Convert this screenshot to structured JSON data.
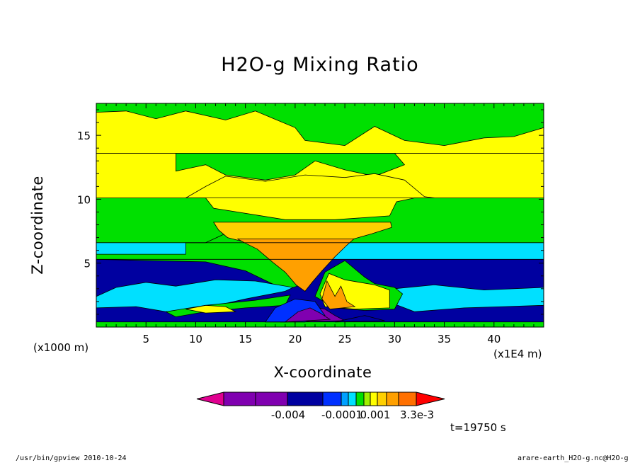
{
  "chart_data": {
    "type": "heatmap",
    "title": "H2O-g Mixing Ratio",
    "xlabel": "X-coordinate",
    "ylabel": "Z-coordinate",
    "x_unit_left": "(x1000 m)",
    "x_unit_right": "(x1E4 m)",
    "xlim": [
      0,
      45
    ],
    "ylim": [
      0,
      17.5
    ],
    "x_ticks": [
      5,
      10,
      15,
      20,
      25,
      30,
      35,
      40
    ],
    "x_tick_labels": [
      "5",
      "10",
      "15",
      "20",
      "25",
      "30",
      "35",
      "40"
    ],
    "y_ticks": [
      5,
      10,
      15
    ],
    "y_tick_labels": [
      "5",
      "10",
      "15"
    ],
    "colorbar": {
      "colors": [
        "#e00090",
        "#8000b0",
        "#8000b0",
        "#0000a0",
        "#0000a0",
        "#0030ff",
        "#00a0ff",
        "#00e0ff",
        "#00e000",
        "#a0f000",
        "#ffff00",
        "#ffd000",
        "#ffa000",
        "#ff7000",
        "#ff0000"
      ],
      "labels": [
        "-0.004",
        "-0.0001",
        "0.001",
        "3.3e-3"
      ]
    },
    "layers": [
      {
        "name": "surface",
        "color": "#00e000",
        "y": [
          0,
          0.4
        ]
      },
      {
        "name": "dark-blue",
        "color": "#0000a0",
        "y": [
          0.4,
          5.3
        ]
      },
      {
        "name": "cyan",
        "color": "#00e0ff",
        "y": [
          5.3,
          6.6
        ]
      },
      {
        "name": "green-mid",
        "color": "#00e000",
        "y": [
          6.6,
          10.1
        ]
      },
      {
        "name": "yellow-mid",
        "color": "#ffff00",
        "y": [
          10.1,
          13.6
        ]
      },
      {
        "name": "green-upper",
        "color": "#00e000",
        "y": [
          13.6,
          17.5
        ]
      }
    ],
    "grid": false
  },
  "time_label": "t=19750 s",
  "footer_left": "/usr/bin/gpview  2010-10-24",
  "footer_right": "arare-earth_H2O-g.nc@H2O-g"
}
